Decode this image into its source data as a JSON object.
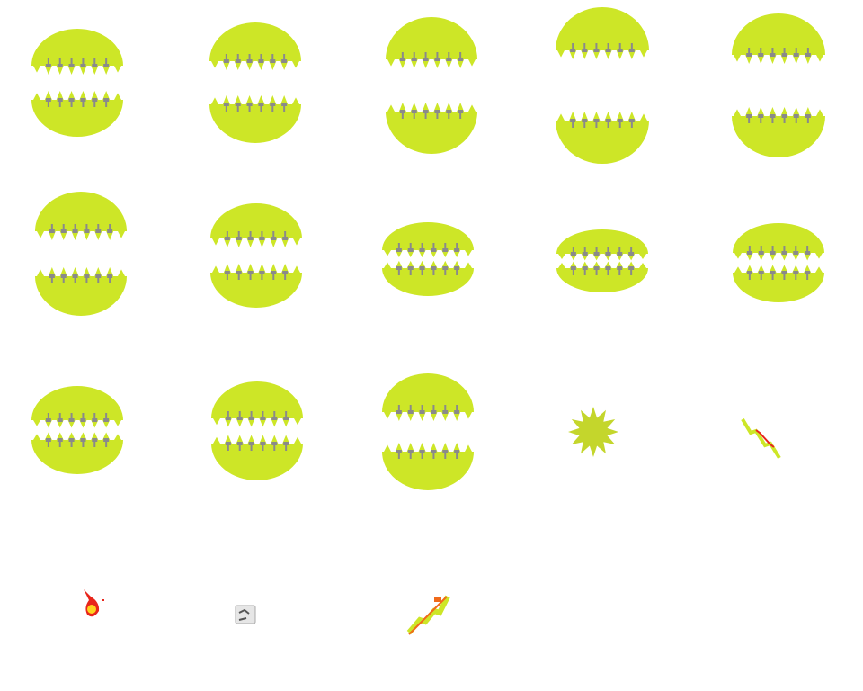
{
  "sprite_sheet": {
    "colors": {
      "mouth": "#cde627",
      "teeth_shade": "#8a8a8a",
      "star": "#c4d62c",
      "fire_outer": "#e8251b",
      "fire_inner": "#ffd21e",
      "bolt": "#cde627",
      "bolt_edge": "#f06a1a",
      "ice": "#a8a8a8"
    },
    "frames": [
      {
        "kind": "mouth"
      },
      {
        "kind": "mouth"
      },
      {
        "kind": "mouth"
      },
      {
        "kind": "mouth"
      },
      {
        "kind": "mouth"
      },
      {
        "kind": "mouth"
      },
      {
        "kind": "mouth"
      },
      {
        "kind": "mouth"
      },
      {
        "kind": "mouth"
      },
      {
        "kind": "mouth"
      },
      {
        "kind": "mouth"
      },
      {
        "kind": "mouth"
      },
      {
        "kind": "mouth"
      },
      {
        "kind": "star-burst"
      },
      {
        "kind": "small-lightning"
      },
      {
        "kind": "fireball"
      },
      {
        "kind": "ice-cube"
      },
      {
        "kind": "lightning-bolt"
      }
    ]
  }
}
